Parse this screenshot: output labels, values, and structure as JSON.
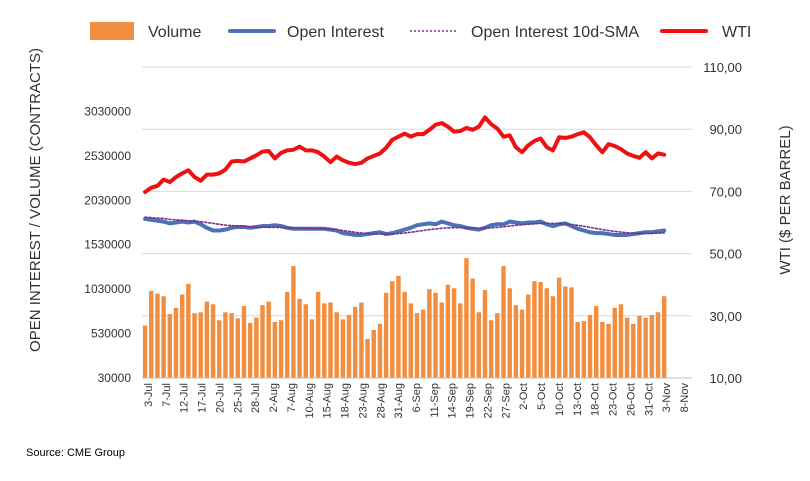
{
  "chart_data": {
    "type": "bar+line",
    "legend": [
      "Volume",
      "Open Interest",
      "Open Interest 10d-SMA",
      "WTI"
    ],
    "legend_position": "top",
    "left_axis": {
      "title": "OPEN INTEREST / VOLUME (CONTRACTS)",
      "ylim": [
        30000,
        3530000
      ],
      "ticks": [
        30000,
        530000,
        1030000,
        1530000,
        2030000,
        2530000,
        3030000
      ],
      "tick_labels": [
        "30000",
        "530000",
        "1030000",
        "1530000",
        "2030000",
        "2530000",
        "3030000"
      ]
    },
    "right_axis": {
      "title": "WTI ($ PER BARREL)",
      "ylim": [
        10,
        110
      ],
      "ticks": [
        10,
        30,
        50,
        70,
        90,
        110
      ],
      "tick_labels": [
        "10,00",
        "30,00",
        "50,00",
        "70,00",
        "90,00",
        "110,00"
      ]
    },
    "x_tick_labels": [
      "3-Jul",
      "7-Jul",
      "12-Jul",
      "17-Jul",
      "20-Jul",
      "25-Jul",
      "28-Jul",
      "2-Aug",
      "7-Aug",
      "10-Aug",
      "15-Aug",
      "18-Aug",
      "23-Aug",
      "28-Aug",
      "31-Aug",
      "6-Sep",
      "11-Sep",
      "14-Sep",
      "19-Sep",
      "22-Sep",
      "27-Sep",
      "2-Oct",
      "5-Oct",
      "10-Oct",
      "13-Oct",
      "18-Oct",
      "23-Oct",
      "26-Oct",
      "31-Oct",
      "3-Nov",
      "8-Nov"
    ],
    "colors": {
      "volume": "#F28E3F",
      "open_interest": "#4A72B5",
      "sma": "#7B2D8E",
      "wti": "#EE1111",
      "grid": "#D9D9D9"
    },
    "grid": true,
    "series": [
      {
        "name": "Volume",
        "axis": "left",
        "values": [
          620000,
          1010000,
          980000,
          950000,
          750000,
          820000,
          970000,
          1090000,
          760000,
          770000,
          890000,
          860000,
          680000,
          770000,
          760000,
          700000,
          840000,
          650000,
          710000,
          850000,
          890000,
          660000,
          680000,
          1000000,
          1290000,
          920000,
          860000,
          690000,
          1000000,
          870000,
          880000,
          770000,
          690000,
          740000,
          830000,
          880000,
          470000,
          570000,
          640000,
          990000,
          1120000,
          1180000,
          1000000,
          870000,
          760000,
          800000,
          1030000,
          990000,
          880000,
          1080000,
          1040000,
          870000,
          1380000,
          1150000,
          770000,
          1020000,
          680000,
          760000,
          1290000,
          1040000,
          850000,
          800000,
          970000,
          1120000,
          1110000,
          1040000,
          950000,
          1160000,
          1060000,
          1050000,
          660000,
          670000,
          740000,
          840000,
          660000,
          640000,
          820000,
          860000,
          710000,
          640000,
          730000,
          710000,
          740000,
          770000,
          950000
        ]
      },
      {
        "name": "Open Interest",
        "axis": "left",
        "values": [
          1820000,
          1810000,
          1800000,
          1790000,
          1770000,
          1780000,
          1790000,
          1780000,
          1790000,
          1760000,
          1720000,
          1690000,
          1690000,
          1700000,
          1720000,
          1730000,
          1730000,
          1720000,
          1730000,
          1740000,
          1740000,
          1750000,
          1740000,
          1720000,
          1710000,
          1710000,
          1710000,
          1710000,
          1710000,
          1710000,
          1700000,
          1690000,
          1660000,
          1650000,
          1640000,
          1640000,
          1650000,
          1660000,
          1670000,
          1650000,
          1660000,
          1680000,
          1700000,
          1720000,
          1750000,
          1760000,
          1770000,
          1760000,
          1790000,
          1770000,
          1750000,
          1740000,
          1720000,
          1710000,
          1700000,
          1720000,
          1750000,
          1760000,
          1760000,
          1790000,
          1780000,
          1770000,
          1780000,
          1780000,
          1790000,
          1760000,
          1740000,
          1760000,
          1770000,
          1740000,
          1710000,
          1690000,
          1670000,
          1660000,
          1660000,
          1650000,
          1640000,
          1640000,
          1640000,
          1650000,
          1660000,
          1670000,
          1670000,
          1680000,
          1690000
        ]
      },
      {
        "name": "Open Interest 10d-SMA",
        "axis": "left",
        "values": [
          1840000,
          1835000,
          1830000,
          1825000,
          1815000,
          1810000,
          1805000,
          1800000,
          1795000,
          1790000,
          1780000,
          1770000,
          1760000,
          1750000,
          1745000,
          1740000,
          1735000,
          1730000,
          1730000,
          1728000,
          1726000,
          1725000,
          1724000,
          1722000,
          1720000,
          1718000,
          1716000,
          1714000,
          1712000,
          1710000,
          1705000,
          1700000,
          1690000,
          1680000,
          1670000,
          1662000,
          1656000,
          1652000,
          1650000,
          1650000,
          1651000,
          1655000,
          1662000,
          1670000,
          1680000,
          1690000,
          1700000,
          1708000,
          1715000,
          1720000,
          1722000,
          1722000,
          1720000,
          1718000,
          1716000,
          1716000,
          1720000,
          1725000,
          1732000,
          1740000,
          1748000,
          1755000,
          1760000,
          1765000,
          1770000,
          1770000,
          1770000,
          1768000,
          1764000,
          1758000,
          1748000,
          1738000,
          1725000,
          1712000,
          1700000,
          1690000,
          1680000,
          1672000,
          1665000,
          1660000,
          1658000,
          1657000,
          1658000,
          1660000,
          1663000
        ]
      },
      {
        "name": "WTI",
        "axis": "right",
        "values": [
          69.8,
          71.2,
          71.8,
          73.8,
          73.0,
          74.6,
          75.8,
          76.8,
          74.6,
          73.4,
          75.4,
          75.4,
          75.8,
          77.0,
          79.6,
          79.8,
          79.6,
          80.6,
          81.6,
          82.8,
          83.0,
          80.6,
          82.4,
          83.2,
          83.4,
          84.4,
          83.2,
          83.2,
          82.6,
          81.2,
          79.4,
          81.2,
          80.0,
          79.2,
          78.8,
          79.2,
          80.6,
          81.4,
          82.2,
          84.0,
          86.6,
          87.6,
          88.6,
          87.6,
          88.4,
          88.4,
          89.8,
          91.4,
          92.0,
          90.8,
          89.2,
          89.4,
          90.4,
          89.8,
          90.8,
          93.8,
          91.6,
          90.2,
          87.6,
          88.0,
          84.2,
          82.6,
          84.8,
          86.2,
          87.0,
          84.2,
          83.2,
          87.4,
          87.2,
          87.6,
          88.4,
          89.0,
          87.4,
          84.8,
          82.6,
          85.2,
          84.6,
          83.6,
          82.2,
          81.4,
          80.8,
          82.6,
          80.6,
          82.2,
          81.8
        ]
      }
    ]
  },
  "source": "Source: CME Group"
}
